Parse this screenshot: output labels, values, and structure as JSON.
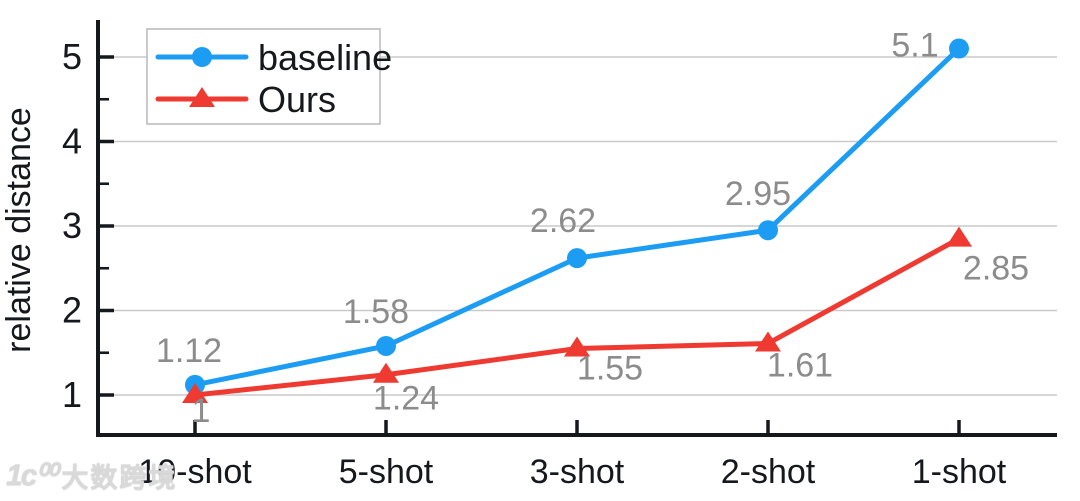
{
  "chart_data": {
    "type": "line",
    "title": "",
    "xlabel": "",
    "ylabel": "relative distance",
    "categories": [
      "10-shot",
      "5-shot",
      "3-shot",
      "2-shot",
      "1-shot"
    ],
    "series": [
      {
        "name": "baseline",
        "marker": "circle",
        "color": "#1C9DF3",
        "values": [
          1.12,
          1.58,
          2.62,
          2.95,
          5.1
        ],
        "point_labels": [
          "1.12",
          "1.58",
          "2.62",
          "2.95",
          "5.1"
        ]
      },
      {
        "name": "Ours",
        "marker": "triangle",
        "color": "#EE3A31",
        "values": [
          1,
          1.24,
          1.55,
          1.61,
          2.85
        ],
        "point_labels": [
          "1",
          "1.24",
          "1.55",
          "1.61",
          "2.85"
        ]
      }
    ],
    "yticks": [
      1,
      2,
      3,
      4,
      5
    ],
    "yticks_minor": [
      1.5,
      2.5,
      3.5,
      4.5
    ],
    "ylim": [
      0.53,
      5.45
    ],
    "grid": true,
    "legend_position": "top-left",
    "colors": {
      "axis": "#15181c",
      "tick_label": "#15181c",
      "grid": "#c9c9c9",
      "point_label": "#8c8c8c",
      "legend_border": "#bcbcbc",
      "legend_bg": "#ffffff"
    }
  },
  "watermark": {
    "logo": "1ᴄ⁰⁰",
    "text": "大数跨境"
  }
}
